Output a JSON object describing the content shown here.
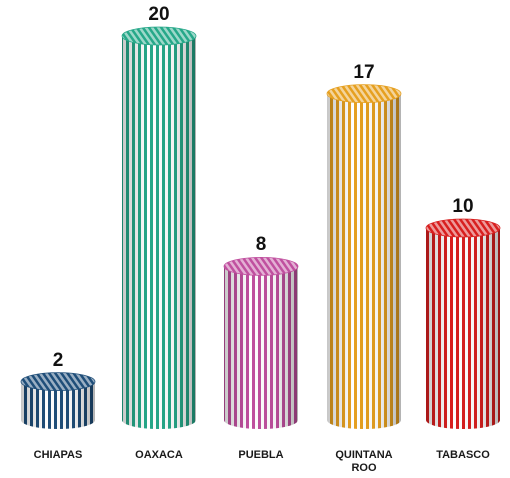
{
  "chart_data": {
    "type": "bar",
    "categories": [
      "CHIAPAS",
      "OAXACA",
      "PUEBLA",
      "QUINTANA ROO",
      "TABASCO"
    ],
    "values": [
      2,
      20,
      8,
      17,
      10
    ],
    "title": "",
    "xlabel": "",
    "ylabel": "",
    "ylim": [
      0,
      20
    ],
    "grid": false,
    "legend": "none",
    "bar_style": "3d-cylinder-striped",
    "colors": [
      "#1f4e79",
      "#26a889",
      "#c0509f",
      "#e6a020",
      "#d81f1f"
    ]
  }
}
